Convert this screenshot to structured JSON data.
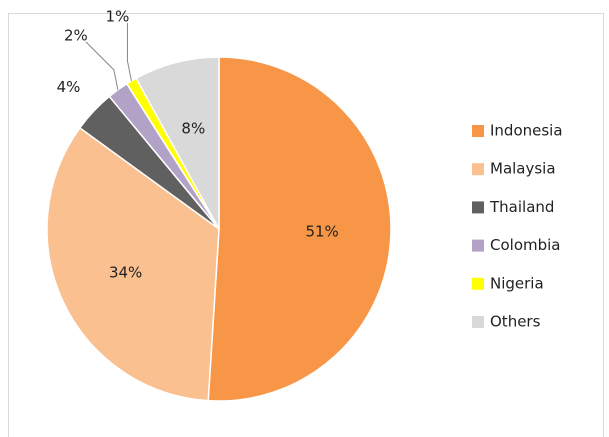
{
  "chart_data": {
    "type": "pie",
    "categories": [
      "Indonesia",
      "Malaysia",
      "Thailand",
      "Colombia",
      "Nigeria",
      "Others"
    ],
    "values": [
      51,
      34,
      4,
      2,
      1,
      8
    ],
    "value_labels": [
      "51%",
      "34%",
      "4%",
      "2%",
      "1%",
      "8%"
    ],
    "colors": [
      "#f79646",
      "#fac090",
      "#606060",
      "#b3a2c7",
      "#ffff00",
      "#d9d9d9"
    ],
    "legend": "right"
  }
}
